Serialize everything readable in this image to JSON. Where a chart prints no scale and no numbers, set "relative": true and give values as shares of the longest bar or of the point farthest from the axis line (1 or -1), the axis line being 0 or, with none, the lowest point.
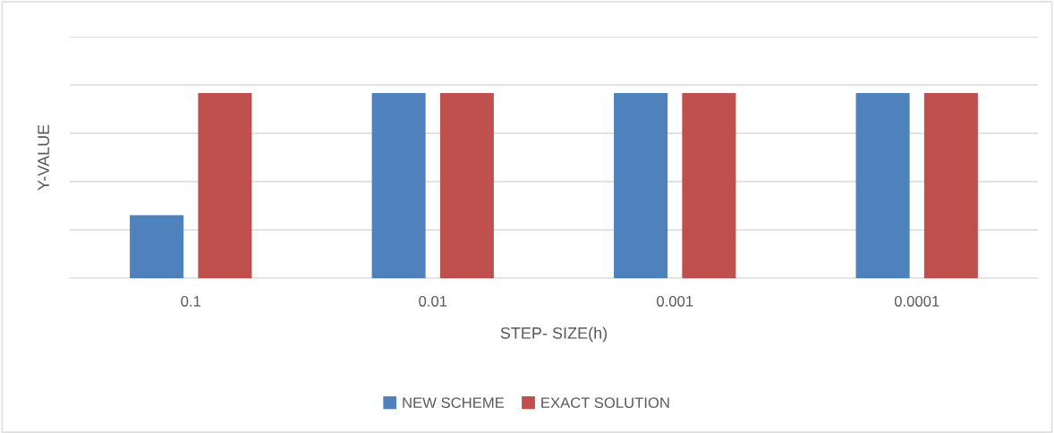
{
  "chart_data": {
    "type": "bar",
    "relative": true,
    "xlabel": "STEP- SIZE(h)",
    "ylabel": "Y-VALUE",
    "categories": [
      "0.1",
      "0.01",
      "0.001",
      "0.0001"
    ],
    "series": [
      {
        "name": "NEW SCHEME",
        "color": "#4f81bd",
        "values": [
          0.34,
          1,
          1,
          1
        ]
      },
      {
        "name": "EXACT SOLUTION",
        "color": "#c0504d",
        "values": [
          1,
          1,
          1,
          1
        ]
      }
    ],
    "grid": "y",
    "legend": "bottom"
  }
}
